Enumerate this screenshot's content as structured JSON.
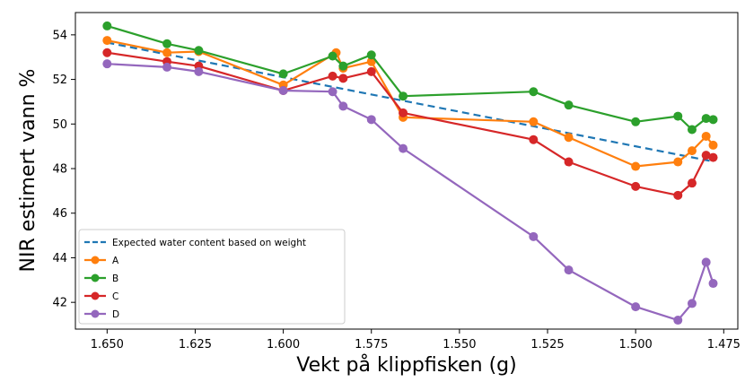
{
  "chart_data": {
    "type": "line",
    "xlabel": "Vekt på klippfisken (g)",
    "ylabel": "NIR estimert vann %",
    "xlim": [
      1.659,
      1.471
    ],
    "ylim": [
      40.8,
      55.0
    ],
    "x_inverted": true,
    "x_ticks": [
      1.65,
      1.625,
      1.6,
      1.575,
      1.55,
      1.525,
      1.5,
      1.475
    ],
    "x_tick_labels": [
      "1.650",
      "1.625",
      "1.600",
      "1.575",
      "1.550",
      "1.525",
      "1.500",
      "1.475"
    ],
    "y_ticks": [
      42,
      44,
      46,
      48,
      50,
      52,
      54
    ],
    "y_tick_labels": [
      "42",
      "44",
      "46",
      "48",
      "50",
      "52",
      "54"
    ],
    "legend_position": "lower-left",
    "expected_line": {
      "name": "Expected water content based on weight",
      "color": "#1f77b4",
      "style": "dashed",
      "x": [
        1.65,
        1.479
      ],
      "y": [
        53.65,
        48.35
      ]
    },
    "series": [
      {
        "name": "A",
        "color": "#ff7f0e",
        "x": [
          1.65,
          1.633,
          1.624,
          1.6,
          1.585,
          1.583,
          1.575,
          1.566,
          1.529,
          1.519,
          1.5,
          1.488,
          1.484,
          1.48,
          1.478
        ],
        "y": [
          53.75,
          53.2,
          53.25,
          51.75,
          53.2,
          52.5,
          52.8,
          50.3,
          50.1,
          49.4,
          48.1,
          48.3,
          48.8,
          49.45,
          49.05
        ]
      },
      {
        "name": "B",
        "color": "#2ca02c",
        "x": [
          1.65,
          1.633,
          1.624,
          1.6,
          1.586,
          1.583,
          1.575,
          1.566,
          1.529,
          1.519,
          1.5,
          1.488,
          1.484,
          1.48,
          1.478
        ],
        "y": [
          54.4,
          53.6,
          53.3,
          52.25,
          53.05,
          52.6,
          53.1,
          51.25,
          51.45,
          50.85,
          50.1,
          50.35,
          49.75,
          50.25,
          50.2
        ]
      },
      {
        "name": "C",
        "color": "#d62728",
        "x": [
          1.65,
          1.633,
          1.624,
          1.6,
          1.586,
          1.583,
          1.575,
          1.566,
          1.529,
          1.519,
          1.5,
          1.488,
          1.484,
          1.48,
          1.478
        ],
        "y": [
          53.2,
          52.8,
          52.6,
          51.5,
          52.15,
          52.05,
          52.35,
          50.5,
          49.3,
          48.3,
          47.2,
          46.8,
          47.35,
          48.6,
          48.5
        ]
      },
      {
        "name": "D",
        "color": "#9467bd",
        "x": [
          1.65,
          1.633,
          1.624,
          1.6,
          1.586,
          1.583,
          1.575,
          1.566,
          1.529,
          1.519,
          1.5,
          1.488,
          1.484,
          1.48,
          1.478
        ],
        "y": [
          52.7,
          52.55,
          52.35,
          51.5,
          51.45,
          50.8,
          50.2,
          48.9,
          44.95,
          43.45,
          41.8,
          41.2,
          41.95,
          43.8,
          42.85
        ]
      }
    ]
  }
}
